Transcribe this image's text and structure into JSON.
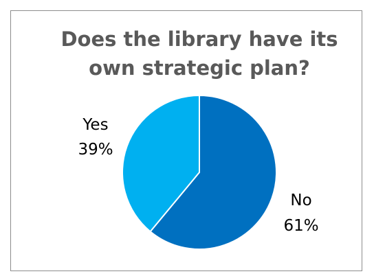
{
  "chart_data": {
    "type": "pie",
    "title_lines": [
      "Does the library have its",
      "own strategic plan?"
    ],
    "slices": [
      {
        "label": "No",
        "value": 61,
        "display": "61%",
        "color": "#0070c0"
      },
      {
        "label": "Yes",
        "value": 39,
        "display": "39%",
        "color": "#00b0f0"
      }
    ],
    "start_angle_deg": 0,
    "direction": "clockwise",
    "legend": "none",
    "slice_border_color": "#ffffff"
  }
}
